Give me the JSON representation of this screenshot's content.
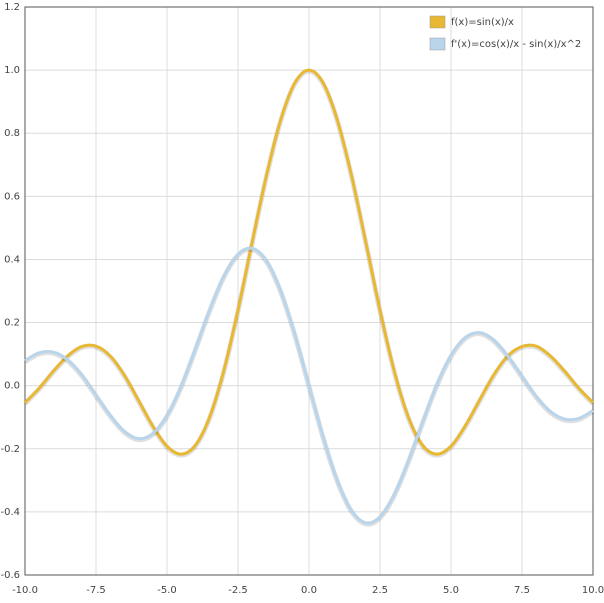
{
  "chart_data": {
    "type": "line",
    "x": [
      -10,
      -9.5,
      -9,
      -8.5,
      -8,
      -7.5,
      -7,
      -6.5,
      -6,
      -5.5,
      -5,
      -4.5,
      -4,
      -3.5,
      -3,
      -2.5,
      -2,
      -1.5,
      -1,
      -0.5,
      0,
      0.5,
      1,
      1.5,
      2,
      2.5,
      3,
      3.5,
      4,
      4.5,
      5,
      5.5,
      6,
      6.5,
      7,
      7.5,
      8,
      8.5,
      9,
      9.5,
      10
    ],
    "series": [
      {
        "name": "f(x)=sin(x)/x",
        "color": "#e8b832",
        "values": [
          -0.054,
          -0.008,
          0.046,
          0.094,
          0.124,
          0.125,
          0.094,
          0.033,
          -0.047,
          -0.128,
          -0.192,
          -0.217,
          -0.189,
          -0.1,
          0.047,
          0.239,
          0.455,
          0.665,
          0.841,
          0.959,
          1,
          0.959,
          0.841,
          0.665,
          0.455,
          0.239,
          0.047,
          -0.1,
          -0.189,
          -0.217,
          -0.192,
          -0.128,
          -0.047,
          0.033,
          0.094,
          0.124,
          0.125,
          0.094,
          0.046,
          -0.008,
          -0.054
        ]
      },
      {
        "name": "f'(x)=cos(x)/x - sin(x)/x^2",
        "color": "#b9d5ec",
        "values": [
          0.079,
          0.104,
          0.106,
          0.082,
          0.034,
          -0.03,
          -0.094,
          -0.145,
          -0.168,
          -0.152,
          -0.095,
          -0.002,
          0.116,
          0.239,
          0.346,
          0.416,
          0.435,
          0.396,
          0.301,
          0.163,
          0,
          -0.163,
          -0.301,
          -0.396,
          -0.435,
          -0.416,
          -0.346,
          -0.239,
          -0.116,
          0.002,
          0.095,
          0.152,
          0.168,
          0.145,
          0.094,
          0.03,
          -0.034,
          -0.082,
          -0.106,
          -0.104,
          -0.079
        ]
      }
    ],
    "xlim": [
      -10,
      10
    ],
    "xticks": [
      {
        "value": -10,
        "label": "-10.0"
      },
      -7.5,
      {
        "value": -5,
        "label": "-5.0"
      },
      -2.5,
      {
        "value": 0,
        "label": "0.0"
      },
      2.5,
      {
        "value": 5,
        "label": "5.0"
      },
      7.5,
      {
        "value": 10,
        "label": "10.0"
      }
    ],
    "ylim": [
      -0.6,
      1.2
    ],
    "yticks": [
      {
        "value": -0.6,
        "label": "-0.6"
      },
      -0.4,
      -0.2,
      {
        "value": 0,
        "label": "0.0"
      },
      0.2,
      0.4,
      0.6,
      0.8,
      {
        "value": 1,
        "label": "1.0"
      },
      1.2
    ],
    "grid": true,
    "legend": "top-right"
  }
}
